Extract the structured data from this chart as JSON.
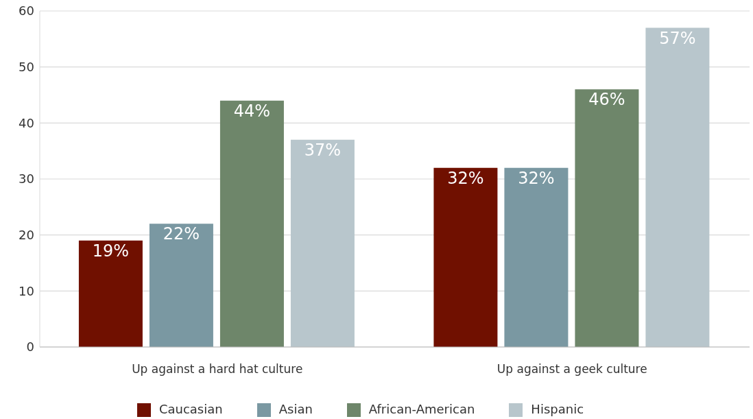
{
  "chart_data": {
    "type": "bar",
    "categories": [
      "Up against a hard hat culture",
      "Up against a geek culture"
    ],
    "series": [
      {
        "name": "Caucasian",
        "color": "#701000",
        "values": [
          19,
          32
        ],
        "value_labels": [
          "19%",
          "32%"
        ]
      },
      {
        "name": "Asian",
        "color": "#7a98a2",
        "values": [
          22,
          32
        ],
        "value_labels": [
          "22%",
          "32%"
        ]
      },
      {
        "name": "African-American",
        "color": "#6e866a",
        "values": [
          44,
          46
        ],
        "value_labels": [
          "44%",
          "46%"
        ]
      },
      {
        "name": "Hispanic",
        "color": "#b8c6cc",
        "values": [
          37,
          57
        ],
        "value_labels": [
          "37%",
          "57%"
        ]
      }
    ],
    "ylim": [
      0,
      60
    ],
    "yticks": [
      0,
      10,
      20,
      30,
      40,
      50,
      60
    ],
    "grid": "y",
    "legend": "bottom"
  }
}
